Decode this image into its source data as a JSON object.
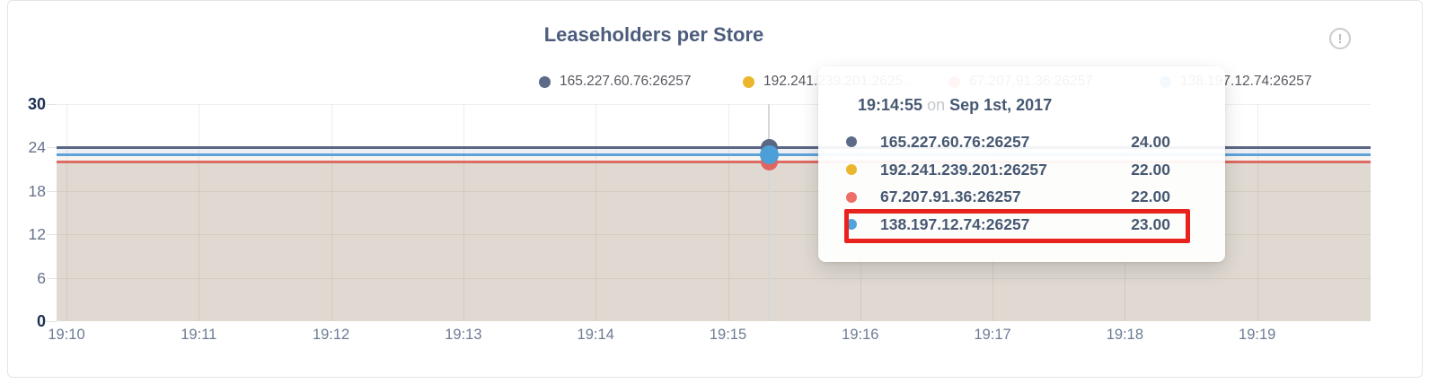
{
  "card": {
    "title": "Leaseholders per Store",
    "info_icon": "circled-exclamation-icon",
    "info_glyph": "!"
  },
  "legend": {
    "items": [
      {
        "label": "165.227.60.76:26257",
        "color": "#5b6b88"
      },
      {
        "label": "192.241.239.201:2625…",
        "color": "#ecb52e"
      },
      {
        "label": "67.207.91.36:26257",
        "color": "#ed6e66"
      },
      {
        "label": "138.197.12.74:26257",
        "color": "#51a3dc"
      }
    ]
  },
  "tooltip": {
    "time": "19:14:55",
    "connector": "on",
    "date": "Sep 1st, 2017",
    "rows": [
      {
        "label": "165.227.60.76:26257",
        "value": "24.00",
        "color": "#5b6b88",
        "highlighted": false
      },
      {
        "label": "192.241.239.201:26257",
        "value": "22.00",
        "color": "#ecb52e",
        "highlighted": false
      },
      {
        "label": "67.207.91.36:26257",
        "value": "22.00",
        "color": "#ed6e66",
        "highlighted": false
      },
      {
        "label": "138.197.12.74:26257",
        "value": "23.00",
        "color": "#51a3dc",
        "highlighted": true
      }
    ],
    "highlight_color": "#e8231d"
  },
  "chart_data": {
    "type": "line",
    "title": "Leaseholders per Store",
    "x": [
      "19:10",
      "19:11",
      "19:12",
      "19:13",
      "19:14",
      "19:15",
      "19:16",
      "19:17",
      "19:18",
      "19:19"
    ],
    "yticks": [
      0,
      6,
      12,
      18,
      24,
      30
    ],
    "ylim": [
      0,
      30
    ],
    "grid": true,
    "legend_position": "top",
    "series": [
      {
        "name": "165.227.60.76:26257",
        "color": "#5a6784",
        "value": 24,
        "values": [
          24,
          24,
          24,
          24,
          24,
          24,
          24,
          24,
          24,
          24
        ]
      },
      {
        "name": "192.241.239.201:26257",
        "color": "#ecb52e",
        "value": 22,
        "values": [
          22,
          22,
          22,
          22,
          22,
          22,
          22,
          22,
          22,
          22
        ]
      },
      {
        "name": "67.207.91.36:26257",
        "color": "#dd6a63",
        "value": 22,
        "values": [
          22,
          22,
          22,
          22,
          22,
          22,
          22,
          22,
          22,
          22
        ]
      },
      {
        "name": "138.197.12.74:26257",
        "color": "#5ea3d8",
        "value": 23,
        "values": [
          23,
          23,
          23,
          23,
          23,
          23,
          23,
          23,
          23,
          23
        ]
      }
    ],
    "hover": {
      "time": "19:14:55",
      "date": "Sep 1st, 2017",
      "values": [
        24,
        22,
        22,
        23
      ]
    },
    "area_fill_color": "#dfd9d1"
  }
}
